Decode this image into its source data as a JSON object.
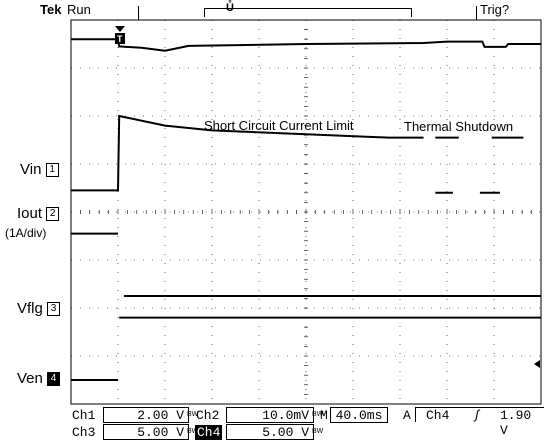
{
  "header": {
    "brand": "Tek",
    "run_state": "Run",
    "trigger_state": "Trig?",
    "trigger_marker": "T"
  },
  "labels": {
    "vin": {
      "name": "Vin",
      "channel": "1"
    },
    "iout": {
      "name": "Iout",
      "channel": "2",
      "scale": "(1A/div)"
    },
    "vflg": {
      "name": "Vflg",
      "channel": "3"
    },
    "ven": {
      "name": "Ven",
      "channel": "4"
    }
  },
  "annotations": {
    "short_circuit": "Short Circuit Current Limit",
    "thermal": "Thermal Shutdown"
  },
  "readout": {
    "ch1": {
      "label": "Ch1",
      "value": "2.00 V",
      "coupling": "BW"
    },
    "ch2": {
      "label": "Ch2",
      "value": "10.0mV",
      "coupling": "BW"
    },
    "ch3": {
      "label": "Ch3",
      "value": "5.00 V",
      "coupling": "BW"
    },
    "ch4": {
      "label": "Ch4",
      "value": "5.00 V",
      "coupling": "BW"
    },
    "timebase": {
      "label": "M",
      "value": "40.0ms"
    },
    "trigger": {
      "mode": "A",
      "source": "Ch4",
      "slope": "rising",
      "level": "1.90 V"
    }
  },
  "colors": {
    "trace": "#000000",
    "grid": "#000000",
    "background": "#ffffff"
  },
  "chart_data": {
    "type": "line",
    "x_divisions": 10,
    "y_divisions": 8,
    "grid": true,
    "time_per_div_ms": 40,
    "x_range_ms": [
      0,
      400
    ],
    "trigger_time_ms": 40,
    "series": [
      {
        "id": "vin_trace",
        "channel": 1,
        "points": [
          [
            0,
            7.6
          ],
          [
            40,
            7.6
          ],
          [
            41,
            7.45
          ],
          [
            60,
            7.42
          ],
          [
            80,
            7.36
          ],
          [
            100,
            7.46
          ],
          [
            200,
            7.5
          ],
          [
            300,
            7.52
          ],
          [
            320,
            7.55
          ],
          [
            350,
            7.55
          ],
          [
            352,
            7.44
          ],
          [
            370,
            7.44
          ],
          [
            372,
            7.5
          ],
          [
            400,
            7.5
          ]
        ]
      },
      {
        "id": "iout_trace",
        "channel": 2,
        "points": [
          [
            0,
            4.45
          ],
          [
            40,
            4.45
          ],
          [
            41,
            6.0
          ],
          [
            80,
            5.8
          ],
          [
            120,
            5.7
          ],
          [
            200,
            5.62
          ],
          [
            270,
            5.55
          ],
          [
            280,
            5.55
          ],
          [
            300,
            5.55
          ],
          [
            300.5,
            null
          ],
          [
            310,
            null
          ],
          [
            310,
            5.55
          ],
          [
            330,
            5.55
          ],
          [
            330.5,
            null
          ],
          [
            358,
            null
          ],
          [
            358,
            5.55
          ],
          [
            385,
            5.55
          ],
          [
            385.5,
            null
          ],
          [
            400,
            null
          ]
        ]
      },
      {
        "id": "iout_spikes",
        "channel": 2,
        "points": [
          [
            310,
            4.4
          ],
          [
            325,
            4.4
          ],
          [
            325.5,
            null
          ],
          [
            348,
            null
          ],
          [
            348,
            4.4
          ],
          [
            365,
            4.4
          ]
        ]
      },
      {
        "id": "vflg_trace",
        "channel": 3,
        "points": [
          [
            0,
            3.55
          ],
          [
            40,
            3.55
          ],
          [
            40.5,
            null
          ],
          [
            45,
            null
          ],
          [
            45,
            2.25
          ],
          [
            400,
            2.25
          ]
        ]
      },
      {
        "id": "ven_trace",
        "channel": 4,
        "points": [
          [
            0,
            0.5
          ],
          [
            40,
            0.5
          ],
          [
            40.5,
            null
          ],
          [
            41,
            null
          ],
          [
            41,
            1.8
          ],
          [
            400,
            1.8
          ]
        ]
      }
    ]
  }
}
